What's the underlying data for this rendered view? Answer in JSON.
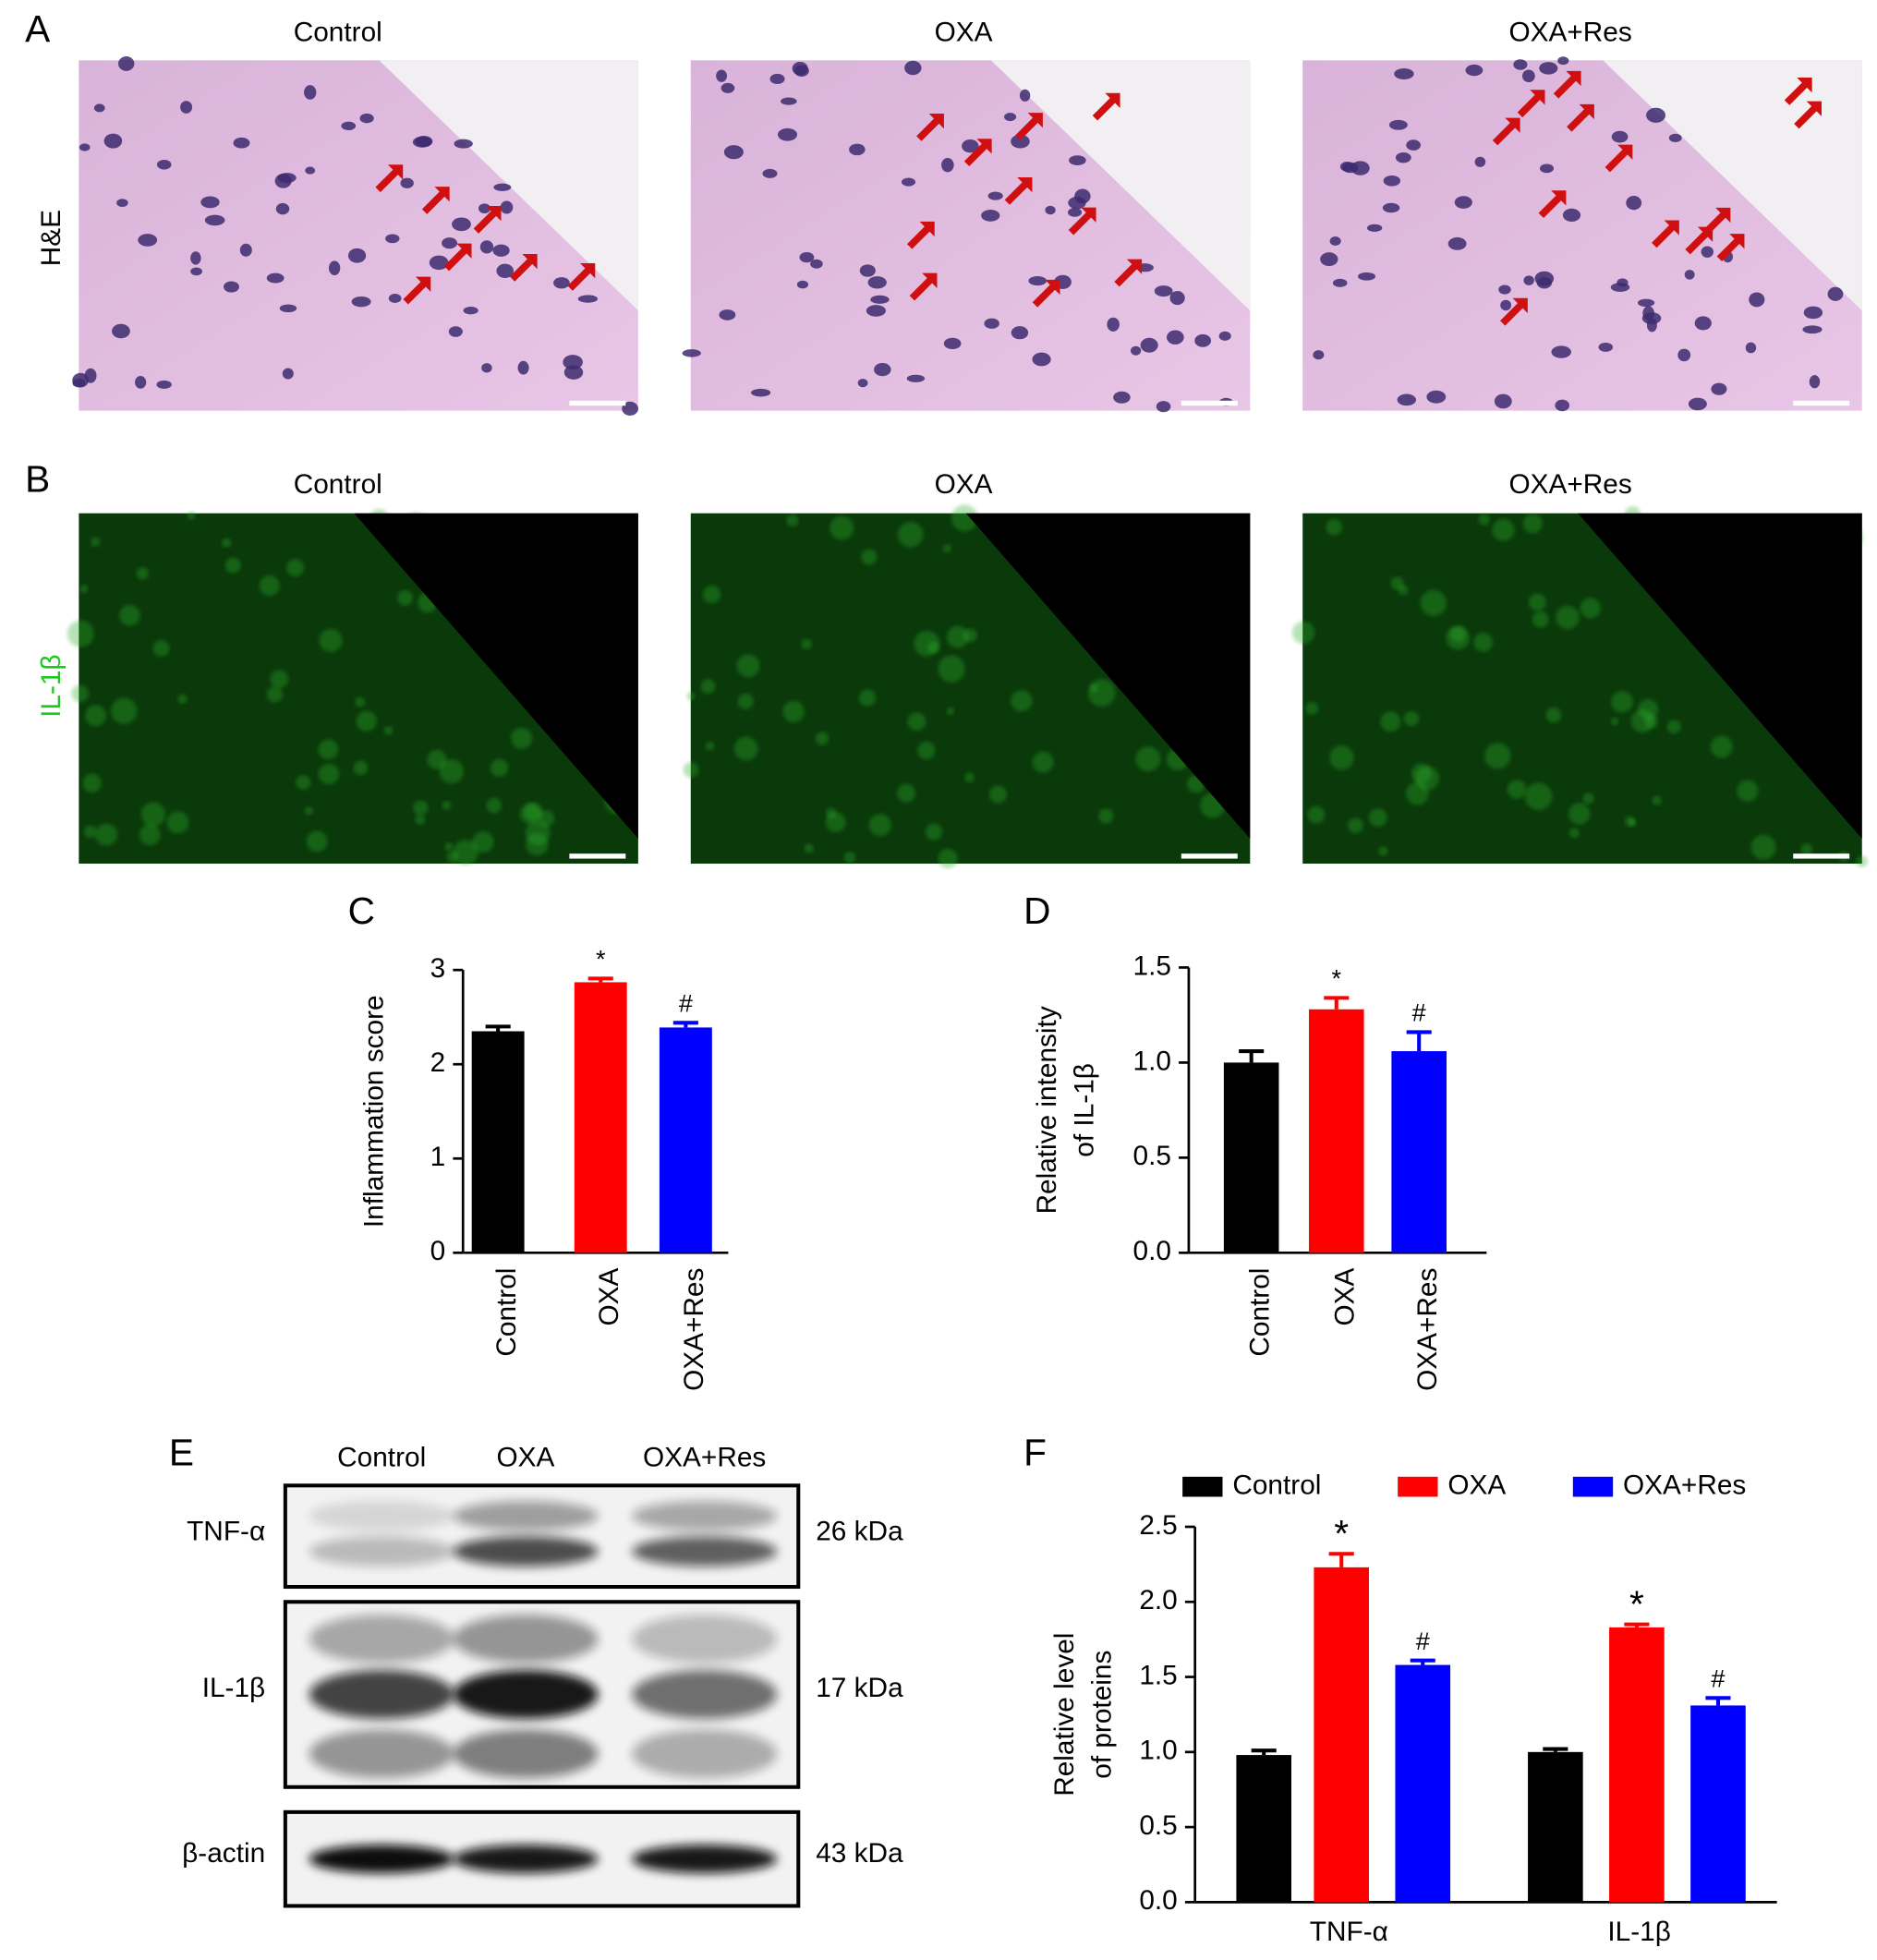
{
  "figure": {
    "panel_labels": [
      "A",
      "B",
      "C",
      "D",
      "E",
      "F"
    ],
    "he": {
      "row_label": "H&E",
      "groups": [
        "Control",
        "OXA",
        "OXA+Res"
      ]
    },
    "if": {
      "row_label": "IL-1β",
      "groups": [
        "Control",
        "OXA",
        "OXA+Res"
      ]
    },
    "blot": {
      "lanes": [
        "Control",
        "OXA",
        "OXA+Res"
      ],
      "rows": [
        {
          "protein": "TNF-α",
          "size": "26 kDa"
        },
        {
          "protein": "IL-1β",
          "size": "17 kDa"
        },
        {
          "protein": "β-actin",
          "size": "43 kDa"
        }
      ]
    }
  },
  "chart_data": [
    {
      "type": "bar",
      "y_label": "Inflammation score",
      "categories": [
        "Control",
        "OXA",
        "OXA+Res"
      ],
      "values": [
        2.35,
        2.87,
        2.39
      ],
      "errors": [
        0.05,
        0.04,
        0.05
      ],
      "colors": [
        "#000000",
        "#ff0000",
        "#0000ff"
      ],
      "significance": [
        null,
        "*",
        "#"
      ],
      "ylim": [
        0,
        3
      ],
      "yticks": [
        0,
        1,
        2,
        3
      ]
    },
    {
      "type": "bar",
      "y_label": [
        "Relative intensity",
        "of IL-1β"
      ],
      "categories": [
        "Control",
        "OXA",
        "OXA+Res"
      ],
      "values": [
        1.0,
        1.28,
        1.06
      ],
      "errors": [
        0.06,
        0.06,
        0.1
      ],
      "colors": [
        "#000000",
        "#ff0000",
        "#0000ff"
      ],
      "significance": [
        null,
        "*",
        "#"
      ],
      "ylim": [
        0,
        1.5
      ],
      "yticks": [
        {
          "value": 0,
          "label": "0.0"
        },
        {
          "value": 0.5,
          "label": "0.5"
        },
        {
          "value": 1,
          "label": "1.0"
        },
        {
          "value": 1.5,
          "label": "1.5"
        }
      ]
    },
    {
      "type": "grouped-bar",
      "y_label": [
        "Relative level",
        "of proteins"
      ],
      "legend": "top",
      "categories": [
        "TNF-α",
        "IL-1β"
      ],
      "series": [
        {
          "name": "Control",
          "color": "#000000",
          "values": [
            0.98,
            1.0
          ],
          "errors": [
            0.03,
            0.02
          ],
          "significance": [
            null,
            null
          ]
        },
        {
          "name": "OXA",
          "color": "#ff0000",
          "values": [
            2.23,
            1.83
          ],
          "errors": [
            0.09,
            0.02
          ],
          "significance": [
            "*",
            "*"
          ]
        },
        {
          "name": "OXA+Res",
          "color": "#0000ff",
          "values": [
            1.58,
            1.31
          ],
          "errors": [
            0.03,
            0.05
          ],
          "significance": [
            "#",
            "#"
          ]
        }
      ],
      "ylim": [
        0,
        2.5
      ],
      "yticks": [
        {
          "value": 0,
          "label": "0.0"
        },
        {
          "value": 0.5,
          "label": "0.5"
        },
        {
          "value": 1,
          "label": "1.0"
        },
        {
          "value": 1.5,
          "label": "1.5"
        },
        {
          "value": 2,
          "label": "2.0"
        },
        {
          "value": 2.5,
          "label": "2.5"
        }
      ]
    }
  ]
}
